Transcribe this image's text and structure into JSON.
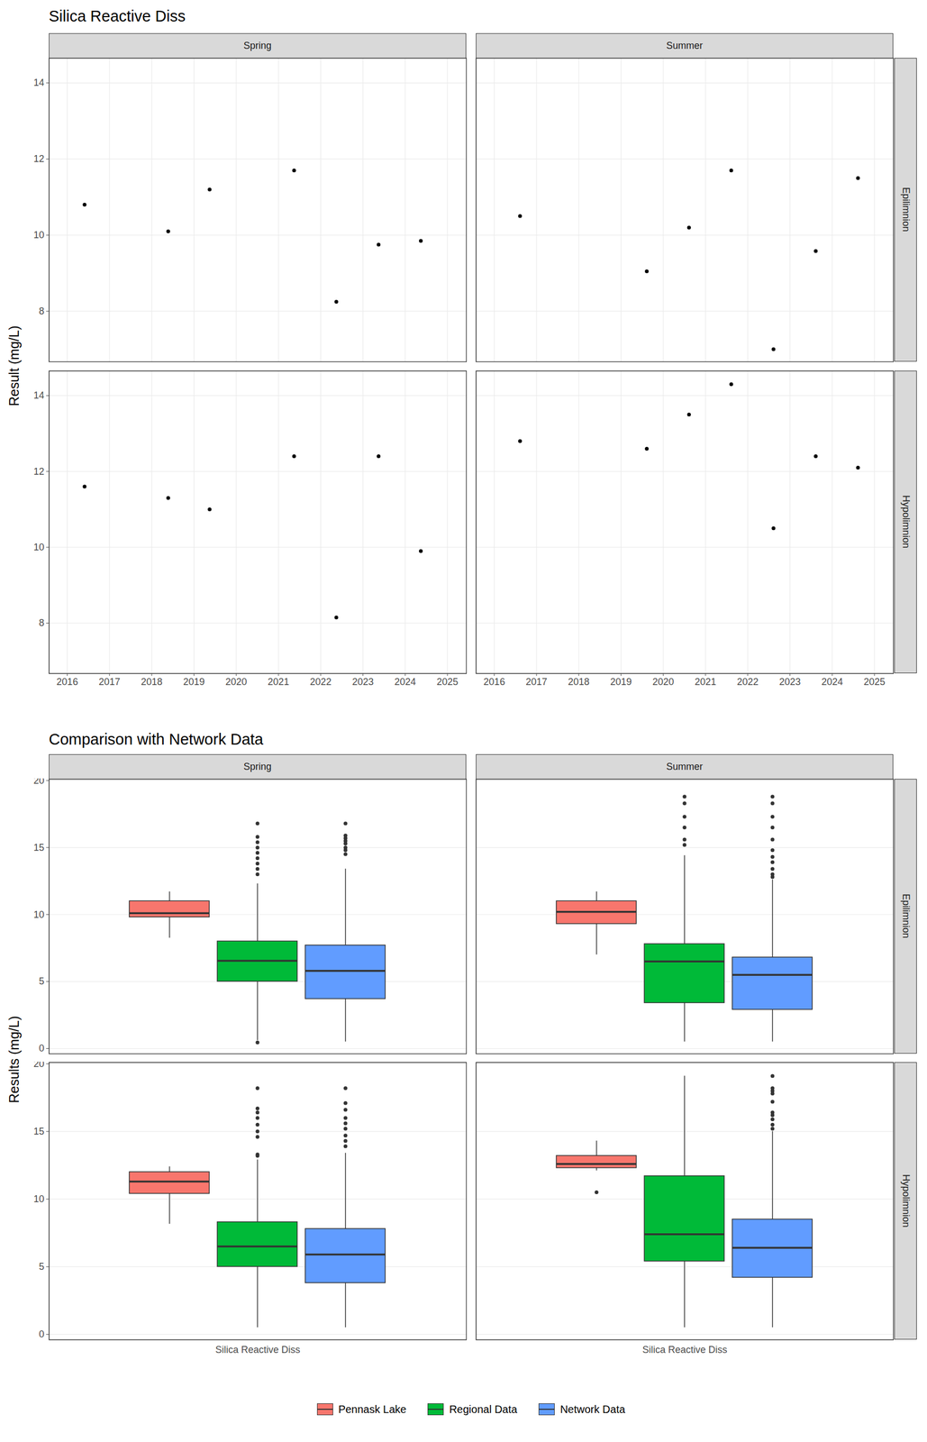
{
  "chart_data": [
    {
      "type": "scatter",
      "title": "Silica Reactive Diss",
      "y_label": "Result (mg/L)",
      "columns": [
        "Spring",
        "Summer"
      ],
      "rows": [
        "Epilimnion",
        "Hypolimnion"
      ],
      "xlim": [
        2015.57,
        2025.45
      ],
      "xticks": [
        2016,
        2017,
        2018,
        2019,
        2020,
        2021,
        2022,
        2023,
        2024,
        2025
      ],
      "ylim": [
        6.67,
        14.65
      ],
      "yticks": [
        8,
        10,
        12,
        14
      ],
      "grid": true,
      "color": "#000000",
      "marker": "circle",
      "panels": [
        {
          "column": "Spring",
          "row": "Epilimnion",
          "x": [
            2016.41,
            2018.39,
            2019.37,
            2021.37,
            2022.37,
            2023.37,
            2024.37
          ],
          "values": [
            10.8,
            10.1,
            11.2,
            11.7,
            8.25,
            9.75,
            9.85
          ]
        },
        {
          "column": "Summer",
          "row": "Epilimnion",
          "x": [
            2016.61,
            2019.61,
            2020.61,
            2021.61,
            2022.61,
            2023.61,
            2024.61
          ],
          "values": [
            10.5,
            9.05,
            10.2,
            11.7,
            7.0,
            9.58,
            11.5
          ]
        },
        {
          "column": "Spring",
          "row": "Hypolimnion",
          "x": [
            2016.41,
            2018.39,
            2019.37,
            2021.37,
            2022.37,
            2023.37,
            2024.37
          ],
          "values": [
            11.6,
            11.3,
            11.0,
            12.4,
            8.15,
            12.4,
            9.9
          ]
        },
        {
          "column": "Summer",
          "row": "Hypolimnion",
          "x": [
            2016.61,
            2019.61,
            2020.61,
            2021.61,
            2022.61,
            2023.61,
            2024.61
          ],
          "values": [
            12.8,
            12.6,
            13.5,
            14.3,
            10.5,
            12.4,
            12.1
          ]
        }
      ]
    },
    {
      "type": "boxplot",
      "title": "Comparison with Network Data",
      "y_label": "Results (mg/L)",
      "columns": [
        "Spring",
        "Summer"
      ],
      "rows": [
        "Epilimnion",
        "Hypolimnion"
      ],
      "categories": [
        "Silica Reactive Diss"
      ],
      "ylim": [
        -0.4,
        20.1
      ],
      "yticks": [
        0,
        5,
        10,
        15,
        20
      ],
      "grid": true,
      "legend": "bottom",
      "series": [
        {
          "name": "Pennask Lake",
          "color": "#F8766D"
        },
        {
          "name": "Regional Data",
          "color": "#00BA38"
        },
        {
          "name": "Network Data",
          "color": "#619CFF"
        }
      ],
      "panels": [
        {
          "column": "Spring",
          "row": "Epilimnion",
          "boxes": [
            {
              "whisker_low": 8.25,
              "q1": 9.8,
              "median": 10.1,
              "q3": 11.0,
              "whisker_high": 11.7,
              "outliers": []
            },
            {
              "whisker_low": 0.6,
              "q1": 5.0,
              "median": 6.55,
              "q3": 8.0,
              "whisker_high": 12.3,
              "outliers": [
                0.45,
                13.0,
                13.4,
                13.8,
                14.2,
                14.6,
                15.0,
                15.4,
                15.8,
                16.8
              ]
            },
            {
              "whisker_low": 0.5,
              "q1": 3.7,
              "median": 5.8,
              "q3": 7.7,
              "whisker_high": 13.4,
              "outliers": [
                14.5,
                14.8,
                15.0,
                15.3,
                15.5,
                15.7,
                15.9,
                16.8
              ]
            }
          ]
        },
        {
          "column": "Summer",
          "row": "Epilimnion",
          "boxes": [
            {
              "whisker_low": 7.0,
              "q1": 9.3,
              "median": 10.2,
              "q3": 11.0,
              "whisker_high": 11.7,
              "outliers": []
            },
            {
              "whisker_low": 0.5,
              "q1": 3.4,
              "median": 6.5,
              "q3": 7.8,
              "whisker_high": 14.4,
              "outliers": [
                15.2,
                15.6,
                16.5,
                17.3,
                18.3,
                18.8
              ]
            },
            {
              "whisker_low": 0.5,
              "q1": 2.9,
              "median": 5.5,
              "q3": 6.8,
              "whisker_high": 12.6,
              "outliers": [
                12.8,
                13.0,
                13.4,
                13.9,
                14.3,
                14.8,
                15.6,
                16.5,
                17.3,
                18.3,
                18.8
              ]
            }
          ]
        },
        {
          "column": "Spring",
          "row": "Hypolimnion",
          "boxes": [
            {
              "whisker_low": 8.15,
              "q1": 10.4,
              "median": 11.3,
              "q3": 12.0,
              "whisker_high": 12.4,
              "outliers": []
            },
            {
              "whisker_low": 0.5,
              "q1": 5.0,
              "median": 6.5,
              "q3": 8.3,
              "whisker_high": 12.9,
              "outliers": [
                13.2,
                13.3,
                14.6,
                15.0,
                15.5,
                16.0,
                16.4,
                16.7,
                18.2
              ]
            },
            {
              "whisker_low": 0.5,
              "q1": 3.8,
              "median": 5.9,
              "q3": 7.8,
              "whisker_high": 13.4,
              "outliers": [
                13.9,
                14.3,
                14.7,
                15.2,
                15.6,
                16.0,
                16.6,
                17.1,
                18.2
              ]
            }
          ]
        },
        {
          "column": "Summer",
          "row": "Hypolimnion",
          "boxes": [
            {
              "whisker_low": 12.1,
              "q1": 12.3,
              "median": 12.6,
              "q3": 13.2,
              "whisker_high": 14.3,
              "outliers": [
                10.5
              ]
            },
            {
              "whisker_low": 0.5,
              "q1": 5.4,
              "median": 7.4,
              "q3": 11.7,
              "whisker_high": 19.1,
              "outliers": []
            },
            {
              "whisker_low": 0.5,
              "q1": 4.2,
              "median": 6.4,
              "q3": 8.5,
              "whisker_high": 15.0,
              "outliers": [
                15.2,
                15.5,
                15.9,
                16.2,
                16.4,
                17.2,
                17.8,
                18.0,
                18.2,
                19.1
              ]
            }
          ]
        }
      ]
    }
  ]
}
